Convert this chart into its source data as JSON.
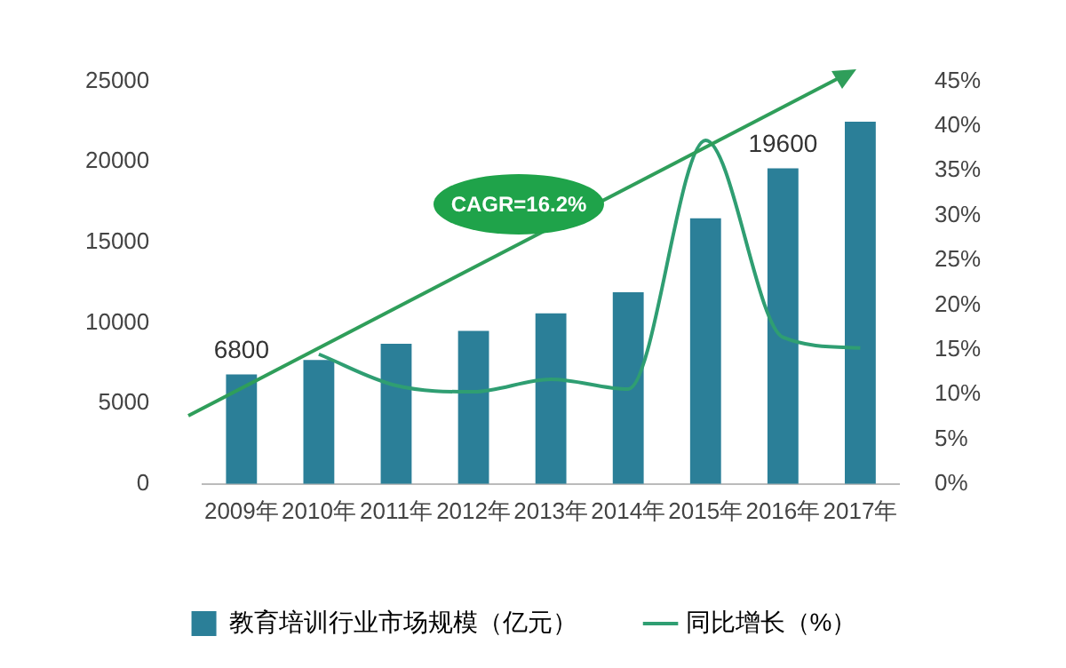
{
  "chart_data": {
    "type": "bar",
    "categories": [
      "2009年",
      "2010年",
      "2011年",
      "2012年",
      "2013年",
      "2014年",
      "2015年",
      "2016年",
      "2017年"
    ],
    "series": [
      {
        "name": "教育培训行业市场规模（亿元）",
        "color": "#2b7f98",
        "values": [
          6800,
          7700,
          8700,
          9500,
          10600,
          11900,
          16500,
          19600,
          22500
        ],
        "value_labels": [
          "6800",
          null,
          null,
          null,
          null,
          null,
          null,
          "19600",
          null
        ]
      },
      {
        "name": "同比增长（%）",
        "type": "line",
        "axis": "y2",
        "color": "#2f9e72",
        "values": [
          null,
          14.5,
          11,
          10.3,
          11.7,
          10.6,
          38.4,
          16.4,
          15.2
        ]
      }
    ],
    "ylim": [
      0,
      25000
    ],
    "yticks": [
      0,
      5000,
      10000,
      15000,
      20000,
      25000
    ],
    "y2lim": [
      0,
      45
    ],
    "y2ticks": [
      {
        "value": 0,
        "label": "0%"
      },
      {
        "value": 5,
        "label": "5%"
      },
      {
        "value": 10,
        "label": "10%"
      },
      {
        "value": 15,
        "label": "15%"
      },
      {
        "value": 20,
        "label": "20%"
      },
      {
        "value": 25,
        "label": "25%"
      },
      {
        "value": 30,
        "label": "30%"
      },
      {
        "value": 35,
        "label": "35%"
      },
      {
        "value": 40,
        "label": "40%"
      },
      {
        "value": 45,
        "label": "45%"
      }
    ],
    "annotations": [
      "CAGR=16.2%"
    ],
    "legend": "bottom",
    "grid": false,
    "marker": "none",
    "line_style": "solid"
  }
}
